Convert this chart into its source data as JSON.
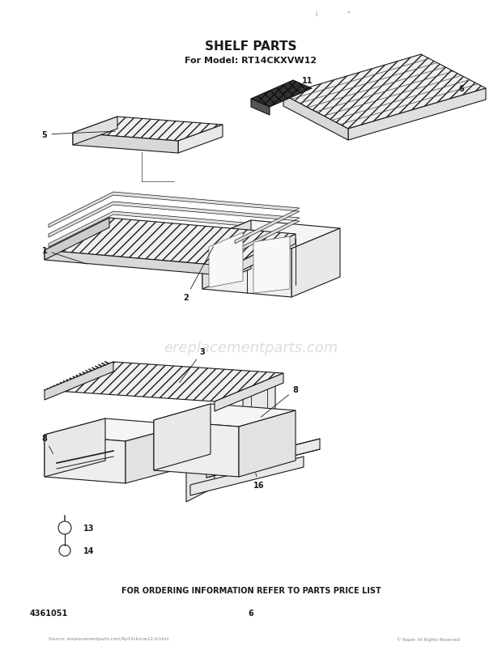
{
  "title": "SHELF PARTS",
  "subtitle": "For Model: RT14CKXVW12",
  "footer_text": "FOR ORDERING INFORMATION REFER TO PARTS PRICE LIST",
  "part_number": "4361051",
  "page_number": "6",
  "bg_color": "#ffffff",
  "title_fontsize": 11,
  "subtitle_fontsize": 8,
  "footer_fontsize": 7,
  "watermark": "ereplacementparts.com",
  "line_color": "#1a1a1a",
  "hatch_color": "#1a1a1a",
  "face_color": "#ffffff",
  "shade_color": "#dddddd",
  "dark_color": "#444444"
}
